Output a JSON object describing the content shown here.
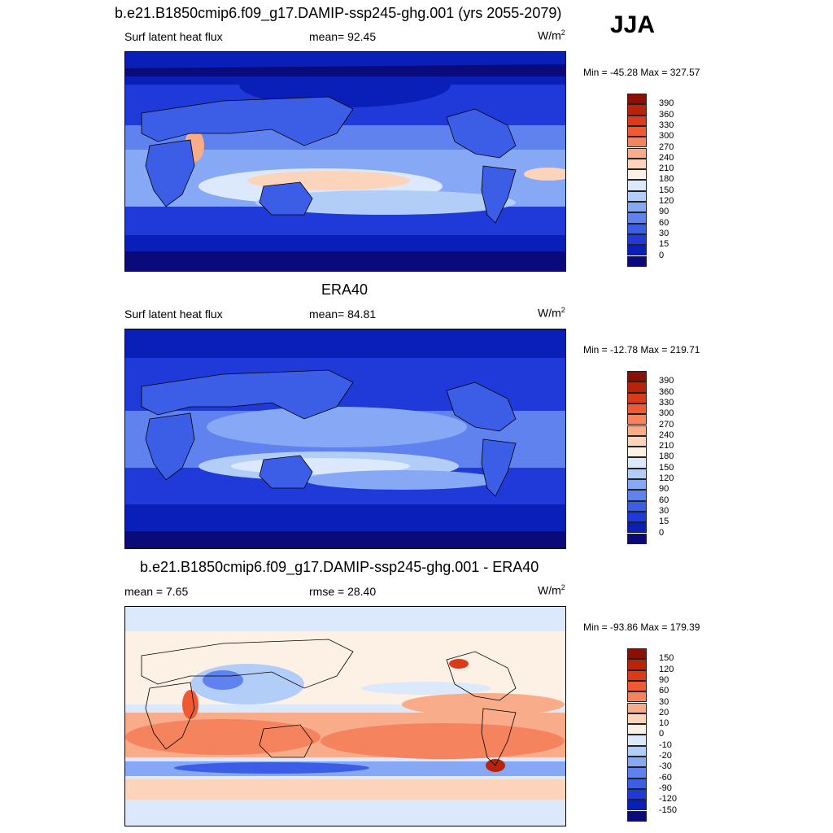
{
  "season": "JJA",
  "panels": [
    {
      "title": "b.e21.B1850cmip6.f09_g17.DAMIP-ssp245-ghg.001 (yrs 2055-2079)",
      "left_label": "Surf latent heat flux",
      "center_label": "mean=  92.45",
      "units_base": "W/m",
      "units_exp": "2",
      "minmax": "Min = -45.28 Max = 327.57",
      "colorbar": {
        "colors": [
          "#0a0a7a",
          "#0a1fb8",
          "#1f3ad8",
          "#3c5ee6",
          "#5f82ef",
          "#86a8f5",
          "#b3cdf9",
          "#dce9fc",
          "#fdf0e4",
          "#fcd3bb",
          "#f9ac8a",
          "#f5845e",
          "#ef5a35",
          "#dc3a1a",
          "#b82409",
          "#8a0f05"
        ],
        "ticks": [
          "0",
          "15",
          "30",
          "60",
          "90",
          "120",
          "150",
          "180",
          "210",
          "240",
          "270",
          "300",
          "330",
          "360",
          "390"
        ]
      }
    },
    {
      "title": "ERA40",
      "left_label": "Surf latent heat flux",
      "center_label": "mean=  84.81",
      "units_base": "W/m",
      "units_exp": "2",
      "minmax": "Min = -12.78 Max = 219.71",
      "colorbar": {
        "colors": [
          "#0a0a7a",
          "#0a1fb8",
          "#1f3ad8",
          "#3c5ee6",
          "#5f82ef",
          "#86a8f5",
          "#b3cdf9",
          "#dce9fc",
          "#fdf0e4",
          "#fcd3bb",
          "#f9ac8a",
          "#f5845e",
          "#ef5a35",
          "#dc3a1a",
          "#b82409",
          "#8a0f05"
        ],
        "ticks": [
          "0",
          "15",
          "30",
          "60",
          "90",
          "120",
          "150",
          "180",
          "210",
          "240",
          "270",
          "300",
          "330",
          "360",
          "390"
        ]
      }
    },
    {
      "title": "b.e21.B1850cmip6.f09_g17.DAMIP-ssp245-ghg.001 - ERA40",
      "left_label": "mean =   7.65",
      "center_label": "rmse =  28.40",
      "units_base": "W/m",
      "units_exp": "2",
      "minmax": "Min = -93.86 Max = 179.39",
      "colorbar": {
        "colors": [
          "#0a0a7a",
          "#0a1fb8",
          "#1f3ad8",
          "#3c5ee6",
          "#5f82ef",
          "#86a8f5",
          "#b3cdf9",
          "#dce9fc",
          "#fdf0e4",
          "#fcd3bb",
          "#f9ac8a",
          "#f5845e",
          "#ef5a35",
          "#dc3a1a",
          "#b82409",
          "#8a0f05"
        ],
        "ticks": [
          "-150",
          "-120",
          "-90",
          "-60",
          "-30",
          "-20",
          "-10",
          "0",
          "10",
          "20",
          "30",
          "60",
          "90",
          "120",
          "150"
        ]
      }
    }
  ]
}
